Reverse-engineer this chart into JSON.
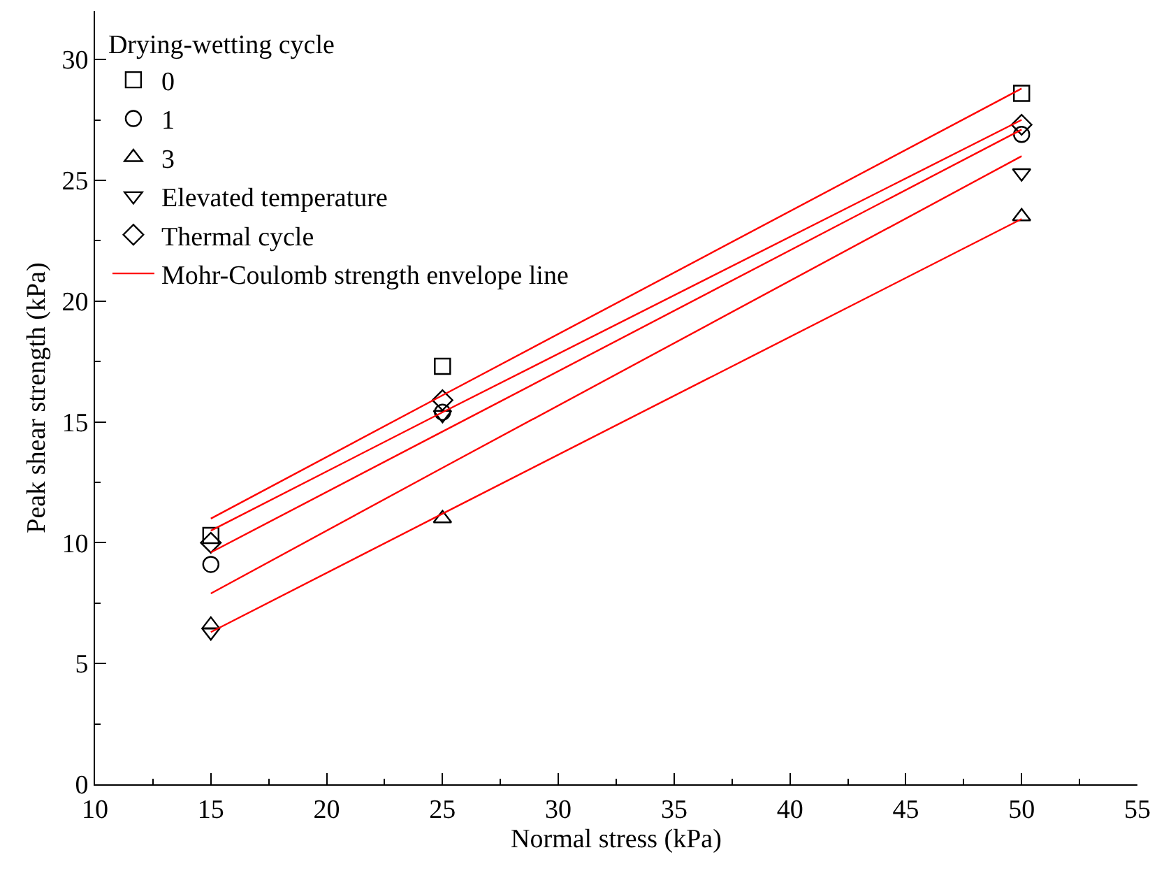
{
  "chart_data": {
    "type": "scatter",
    "xlabel": "Normal stress (kPa)",
    "ylabel": "Peak shear strength (kPa)",
    "legend_title": "Drying-wetting cycle",
    "x": [
      15,
      25,
      50
    ],
    "series": [
      {
        "name": "0",
        "color": "#000000",
        "marker": "square",
        "values": [
          10.3,
          17.3,
          28.6
        ]
      },
      {
        "name": "1",
        "color": "#000000",
        "marker": "circle",
        "values": [
          9.1,
          15.4,
          26.9
        ]
      },
      {
        "name": "3",
        "color": "#000000",
        "marker": "triangle",
        "values": [
          6.6,
          11.0,
          23.5
        ]
      },
      {
        "name": "Elevated temperature",
        "color": "#000000",
        "marker": "triangle-down",
        "values": [
          6.3,
          15.3,
          25.3
        ]
      },
      {
        "name": "Thermal cycle",
        "color": "#000000",
        "marker": "diamond",
        "values": [
          10.0,
          15.9,
          27.3
        ]
      },
      {
        "name": "Mohr-Coulomb strength envelope line",
        "type": "line",
        "color": "#ff0000",
        "values": [
          11.0,
          16.1,
          28.8
        ]
      },
      {
        "type": "line",
        "color": "#ff0000",
        "values": [
          10.5,
          15.4,
          27.5
        ]
      },
      {
        "type": "line",
        "color": "#ff0000",
        "values": [
          9.6,
          14.6,
          27.1
        ]
      },
      {
        "type": "line",
        "color": "#ff0000",
        "values": [
          7.9,
          13.1,
          26.0
        ]
      },
      {
        "type": "line",
        "color": "#ff0000",
        "values": [
          6.3,
          11.2,
          23.4
        ]
      }
    ],
    "xlim": [
      10,
      55
    ],
    "xticks": [
      10,
      15,
      20,
      25,
      30,
      35,
      40,
      45,
      50,
      55
    ],
    "ylim": [
      0,
      32
    ],
    "yticks": [
      0,
      5,
      10,
      15,
      20,
      25,
      30
    ],
    "grid": false,
    "legend": "top left"
  }
}
